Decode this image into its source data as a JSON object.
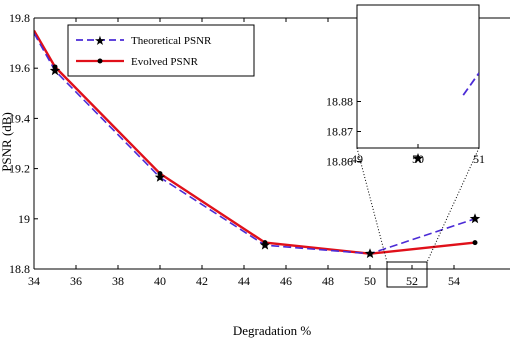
{
  "chart_data": {
    "type": "line",
    "xlabel": "Degradation %",
    "ylabel": "PSNR (dB)",
    "xlim": [
      34,
      55
    ],
    "ylim": [
      18.8,
      19.8
    ],
    "x_ticks": [
      "34",
      "36",
      "38",
      "40",
      "42",
      "44",
      "46",
      "48",
      "50",
      "52",
      "54"
    ],
    "y_ticks": [
      "18.8",
      "19",
      "19.2",
      "19.4",
      "19.6",
      "19.8"
    ],
    "legend_position": "top-left",
    "grid": false,
    "series": [
      {
        "name": "Theoretical PSNR",
        "color": "#4b2bd6",
        "style": "dashed",
        "marker": "star",
        "x": [
          34,
          35,
          40,
          45,
          50,
          55
        ],
        "y": [
          19.74,
          19.59,
          19.165,
          18.895,
          18.861,
          19.0
        ]
      },
      {
        "name": "Evolved PSNR",
        "color": "#e0101a",
        "style": "solid",
        "marker": "dot",
        "x": [
          34,
          35,
          40,
          45,
          50,
          55
        ],
        "y": [
          19.75,
          19.605,
          19.18,
          18.905,
          18.861,
          18.905
        ]
      }
    ],
    "inset": {
      "xlim": [
        49,
        51
      ],
      "ylim": [
        18.855,
        18.89
      ],
      "x_ticks": [
        "49",
        "50",
        "51"
      ],
      "y_ticks": [
        "18.86",
        "18.87",
        "18.88"
      ],
      "series": [
        {
          "name": "Theoretical PSNR",
          "x": [
            49,
            49.5,
            50,
            51
          ],
          "y": [
            18.8695,
            18.8655,
            18.861,
            18.8895
          ]
        },
        {
          "name": "Evolved PSNR",
          "x": [
            49,
            49.5,
            50,
            51
          ],
          "y": [
            18.8695,
            18.866,
            18.861,
            18.8703
          ]
        }
      ]
    }
  }
}
